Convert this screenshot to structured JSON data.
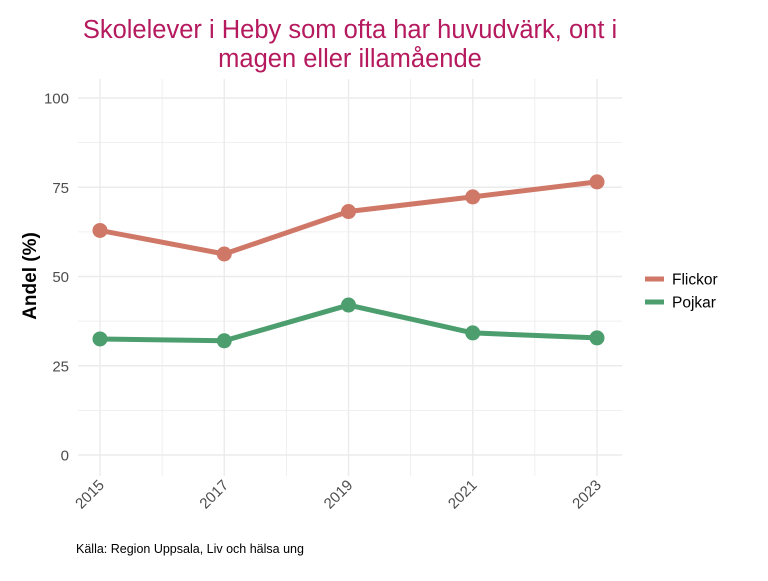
{
  "chart_data": {
    "type": "line",
    "title_line1": "Skolelever i Heby som ofta har huvudvärk, ont i",
    "title_line2": "magen eller illamående",
    "xlabel": "",
    "ylabel": "Andel (%)",
    "caption": "Källa: Region Uppsala, Liv och hälsa ung",
    "x": [
      "2015",
      "2017",
      "2019",
      "2021",
      "2023"
    ],
    "ylim": [
      0,
      100
    ],
    "yticks": [
      0,
      25,
      50,
      75,
      100
    ],
    "grid": true,
    "legend_position": "right",
    "series": [
      {
        "name": "Flickor",
        "color": "#D07868",
        "values": [
          62.9,
          56.3,
          68.2,
          72.3,
          76.5
        ]
      },
      {
        "name": "Pojkar",
        "color": "#4C9E6E",
        "values": [
          32.5,
          32.0,
          42.0,
          34.2,
          32.8
        ]
      }
    ],
    "colors": {
      "title": "#B5195E",
      "grid": "#EBEBEB",
      "tick_label": "#4D4D4D"
    }
  }
}
